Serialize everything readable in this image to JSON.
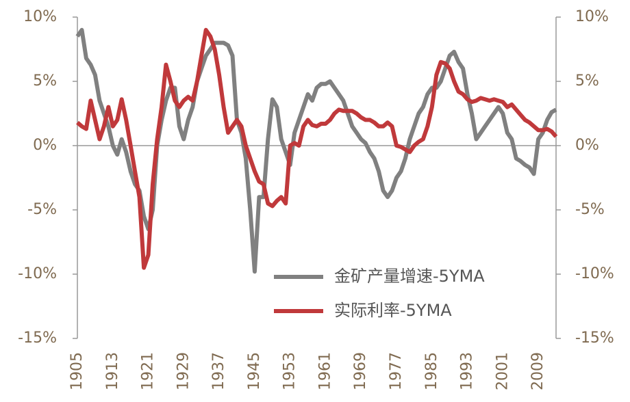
{
  "chart_data": {
    "type": "line",
    "x": [
      1905,
      1906,
      1907,
      1908,
      1909,
      1910,
      1911,
      1912,
      1913,
      1914,
      1915,
      1916,
      1917,
      1918,
      1919,
      1920,
      1921,
      1922,
      1923,
      1924,
      1925,
      1926,
      1927,
      1928,
      1929,
      1930,
      1931,
      1932,
      1933,
      1934,
      1935,
      1936,
      1937,
      1938,
      1939,
      1940,
      1941,
      1942,
      1943,
      1944,
      1945,
      1946,
      1947,
      1948,
      1949,
      1950,
      1951,
      1952,
      1953,
      1954,
      1955,
      1956,
      1957,
      1958,
      1959,
      1960,
      1961,
      1962,
      1963,
      1964,
      1965,
      1966,
      1967,
      1968,
      1969,
      1970,
      1971,
      1972,
      1973,
      1974,
      1975,
      1976,
      1977,
      1978,
      1979,
      1980,
      1981,
      1982,
      1983,
      1984,
      1985,
      1986,
      1987,
      1988,
      1989,
      1990,
      1991,
      1992,
      1993,
      1994,
      1995,
      1996,
      1997,
      1998,
      1999,
      2000,
      2001,
      2002,
      2003,
      2004,
      2005,
      2006,
      2007,
      2008,
      2009,
      2010,
      2011,
      2012,
      2013
    ],
    "series": [
      {
        "name": "金矿产量增速-5YMA",
        "color": "#808080",
        "axis": "y",
        "values": [
          8.5,
          9,
          6.8,
          6.3,
          5.5,
          3.5,
          2.5,
          1.5,
          0,
          -0.7,
          0.5,
          -0.5,
          -2,
          -3,
          -3.5,
          -5.5,
          -6.5,
          -5,
          0,
          2,
          3.5,
          4.5,
          4.5,
          1.5,
          0.5,
          2,
          3,
          5,
          6,
          7,
          7.5,
          8,
          8,
          8,
          7.8,
          7,
          2,
          1,
          -1,
          -5,
          -9.8,
          -4,
          -4,
          0.5,
          3.6,
          3,
          0.5,
          -0.5,
          -1.5,
          1,
          2,
          3,
          4,
          3.5,
          4.5,
          4.8,
          4.8,
          5,
          4.5,
          4,
          3.5,
          2.5,
          1.5,
          1,
          0.5,
          0.2,
          -0.5,
          -1,
          -2,
          -3.5,
          -4,
          -3.5,
          -2.5,
          -2,
          -1,
          0.5,
          1.5,
          2.5,
          3,
          4,
          4.5,
          4.5,
          5,
          6,
          7,
          7.3,
          6.5,
          6,
          4,
          2.5,
          0.5,
          1,
          1.5,
          2,
          2.5,
          3,
          2.5,
          1,
          0.5,
          -1,
          -1.2,
          -1.5,
          -1.7,
          -2.2,
          0.5,
          1,
          2,
          2.6,
          2.8
        ]
      },
      {
        "name": "实际利率-5YMA",
        "color": "#c0393b",
        "axis": "y2",
        "values": [
          1.8,
          1.5,
          1.3,
          3.5,
          2,
          0.5,
          1.5,
          3,
          1.5,
          2,
          3.6,
          2,
          0,
          -2,
          -4,
          -9.5,
          -8.5,
          -3,
          0.5,
          3,
          6.3,
          5,
          3.5,
          3,
          3.5,
          3.8,
          3.5,
          5,
          7,
          9,
          8.5,
          7.5,
          5.5,
          3,
          1,
          1.5,
          2,
          1.5,
          0,
          -1,
          -2,
          -2.8,
          -3,
          -4.5,
          -4.7,
          -4.3,
          -4,
          -4.5,
          0,
          0.2,
          0,
          1.5,
          2,
          1.6,
          1.5,
          1.7,
          1.7,
          2,
          2.5,
          2.8,
          2.7,
          2.7,
          2.7,
          2.5,
          2.2,
          2,
          2,
          1.8,
          1.5,
          1.5,
          1.8,
          1.5,
          0,
          -0.1,
          -0.3,
          -0.5,
          0,
          0.3,
          0.5,
          1.5,
          3,
          5.5,
          6.5,
          6.4,
          6,
          5,
          4.2,
          4,
          3.6,
          3.4,
          3.5,
          3.7,
          3.6,
          3.5,
          3.6,
          3.5,
          3.4,
          3,
          3.2,
          2.8,
          2.4,
          2,
          1.8,
          1.5,
          1.2,
          1.2,
          1.3,
          1.1,
          0.7
        ]
      }
    ],
    "xlim": [
      1905,
      2013
    ],
    "xticks": [
      1905,
      1913,
      1921,
      1929,
      1937,
      1945,
      1953,
      1961,
      1969,
      1977,
      1985,
      1993,
      2001,
      2009
    ],
    "ylim": [
      -15,
      10
    ],
    "yticks": [
      {
        "value": -15,
        "label": "-15%"
      },
      {
        "value": -10,
        "label": "-10%"
      },
      {
        "value": -5,
        "label": "-5%"
      },
      {
        "value": 0,
        "label": "0%"
      },
      {
        "value": 5,
        "label": "5%"
      },
      {
        "value": 10,
        "label": "10%"
      }
    ],
    "y2lim": [
      -15,
      10
    ],
    "y2ticks": [
      {
        "value": -15,
        "label": "-15%"
      },
      {
        "value": -10,
        "label": "-10%"
      },
      {
        "value": -5,
        "label": "-5%"
      },
      {
        "value": 0,
        "label": "0%"
      },
      {
        "value": 5,
        "label": "5%"
      },
      {
        "value": 10,
        "label": "10%"
      }
    ],
    "legend": "lower-right"
  }
}
